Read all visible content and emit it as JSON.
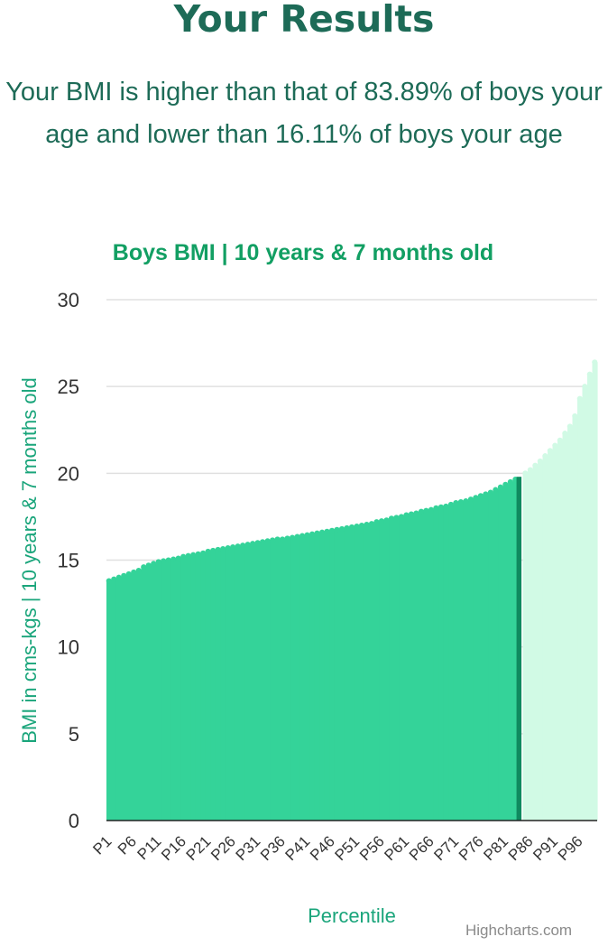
{
  "header": {
    "title": "Your Results",
    "result_text": "Your BMI is higher than that of 83.89% of boys your age and lower than 16.11% of boys your age"
  },
  "credits": "Highcharts.com",
  "colors": {
    "title": "#1d6b57",
    "chart_title": "#129f63",
    "axis_label": "#1aa57b",
    "bar_below": "#34d399",
    "bar_above": "#d1fae5",
    "bar_current": "#0f8a5f",
    "gridline": "#e0e0e0",
    "axis_line": "#222222",
    "tick_text": "#333333"
  },
  "chart_data": {
    "type": "bar",
    "title": "Boys BMI | 10 years & 7 months old",
    "xlabel": "Percentile",
    "ylabel": "BMI in cms-kgs | 10 years & 7 months old",
    "ylim": [
      0,
      30
    ],
    "yticks": [
      0,
      5,
      10,
      15,
      20,
      25,
      30
    ],
    "xtick_labels": [
      "P1",
      "P6",
      "P11",
      "P16",
      "P21",
      "P26",
      "P31",
      "P36",
      "P41",
      "P46",
      "P51",
      "P56",
      "P61",
      "P66",
      "P71",
      "P76",
      "P81",
      "P86",
      "P91",
      "P96"
    ],
    "categories": [
      "P1",
      "P2",
      "P3",
      "P4",
      "P5",
      "P6",
      "P7",
      "P8",
      "P9",
      "P10",
      "P11",
      "P12",
      "P13",
      "P14",
      "P15",
      "P16",
      "P17",
      "P18",
      "P19",
      "P20",
      "P21",
      "P22",
      "P23",
      "P24",
      "P25",
      "P26",
      "P27",
      "P28",
      "P29",
      "P30",
      "P31",
      "P32",
      "P33",
      "P34",
      "P35",
      "P36",
      "P37",
      "P38",
      "P39",
      "P40",
      "P41",
      "P42",
      "P43",
      "P44",
      "P45",
      "P46",
      "P47",
      "P48",
      "P49",
      "P50",
      "P51",
      "P52",
      "P53",
      "P54",
      "P55",
      "P56",
      "P57",
      "P58",
      "P59",
      "P60",
      "P61",
      "P62",
      "P63",
      "P64",
      "P65",
      "P66",
      "P67",
      "P68",
      "P69",
      "P70",
      "P71",
      "P72",
      "P73",
      "P74",
      "P75",
      "P76",
      "P77",
      "P78",
      "P79",
      "P80",
      "P81",
      "P82",
      "P83",
      "P84",
      "P85",
      "P86",
      "P87",
      "P88",
      "P89",
      "P90",
      "P91",
      "P92",
      "P93",
      "P94",
      "P95",
      "P96",
      "P97",
      "P98",
      "P99"
    ],
    "values": [
      13.8,
      13.9,
      14.0,
      14.1,
      14.2,
      14.3,
      14.4,
      14.6,
      14.7,
      14.8,
      14.9,
      14.95,
      15.0,
      15.05,
      15.1,
      15.2,
      15.25,
      15.3,
      15.35,
      15.4,
      15.5,
      15.55,
      15.6,
      15.65,
      15.7,
      15.75,
      15.8,
      15.85,
      15.9,
      15.95,
      16.0,
      16.05,
      16.1,
      16.15,
      16.2,
      16.2,
      16.25,
      16.3,
      16.35,
      16.4,
      16.45,
      16.5,
      16.55,
      16.6,
      16.65,
      16.7,
      16.75,
      16.8,
      16.85,
      16.9,
      16.95,
      17.0,
      17.05,
      17.1,
      17.2,
      17.25,
      17.3,
      17.4,
      17.45,
      17.5,
      17.6,
      17.65,
      17.7,
      17.8,
      17.85,
      17.9,
      18.0,
      18.05,
      18.1,
      18.2,
      18.3,
      18.35,
      18.4,
      18.5,
      18.6,
      18.7,
      18.8,
      18.9,
      19.05,
      19.2,
      19.35,
      19.5,
      19.65,
      19.8,
      20.0,
      20.2,
      20.45,
      20.7,
      21.0,
      21.3,
      21.6,
      21.9,
      22.3,
      22.7,
      23.3,
      24.3,
      25.0,
      25.7,
      26.4
    ],
    "current_percentile_index": 83,
    "current_percentile_value": 83.89
  }
}
